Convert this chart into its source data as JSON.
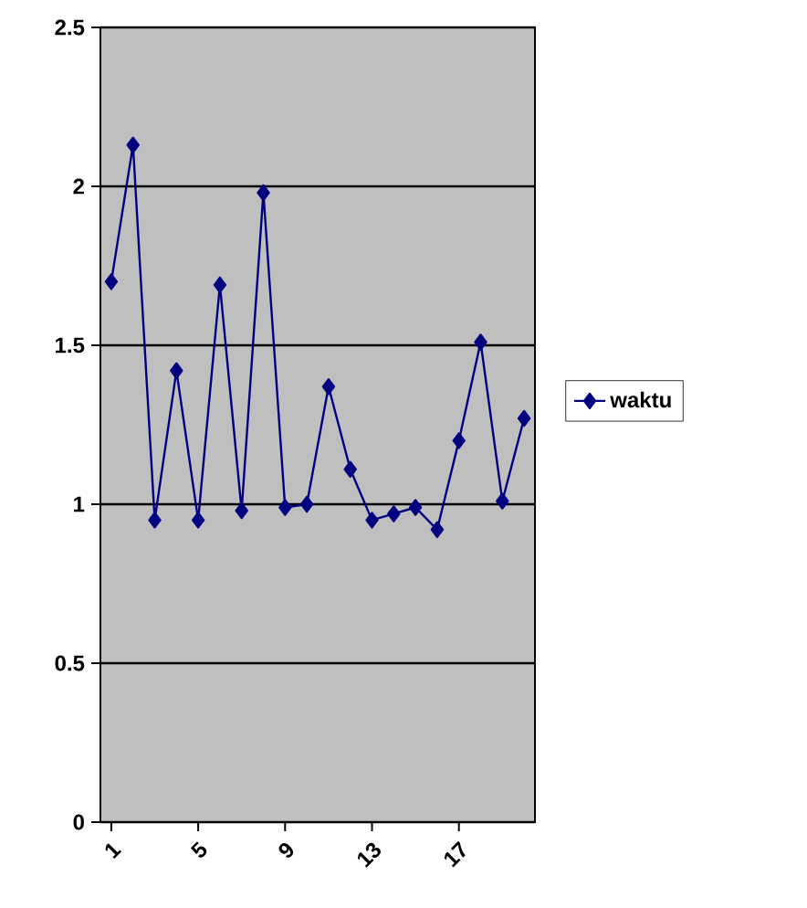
{
  "chart_data": {
    "type": "line",
    "categories": [
      "1",
      null,
      null,
      null,
      "5",
      null,
      null,
      null,
      "9",
      null,
      null,
      null,
      "13",
      null,
      null,
      null,
      "17",
      null,
      null,
      null
    ],
    "series": [
      {
        "name": "waktu",
        "color": "#000080",
        "values": [
          1.7,
          2.13,
          0.95,
          1.42,
          0.95,
          1.69,
          0.98,
          1.98,
          0.99,
          1.0,
          1.37,
          1.11,
          0.95,
          0.97,
          0.99,
          0.92,
          1.2,
          1.51,
          1.01,
          1.27
        ]
      }
    ],
    "ylim": [
      0,
      2.5
    ],
    "yticks": [
      0,
      0.5,
      1,
      1.5,
      2,
      2.5
    ],
    "grid": "y",
    "legend": "right",
    "marker": "diamond",
    "line_style": "solid"
  }
}
